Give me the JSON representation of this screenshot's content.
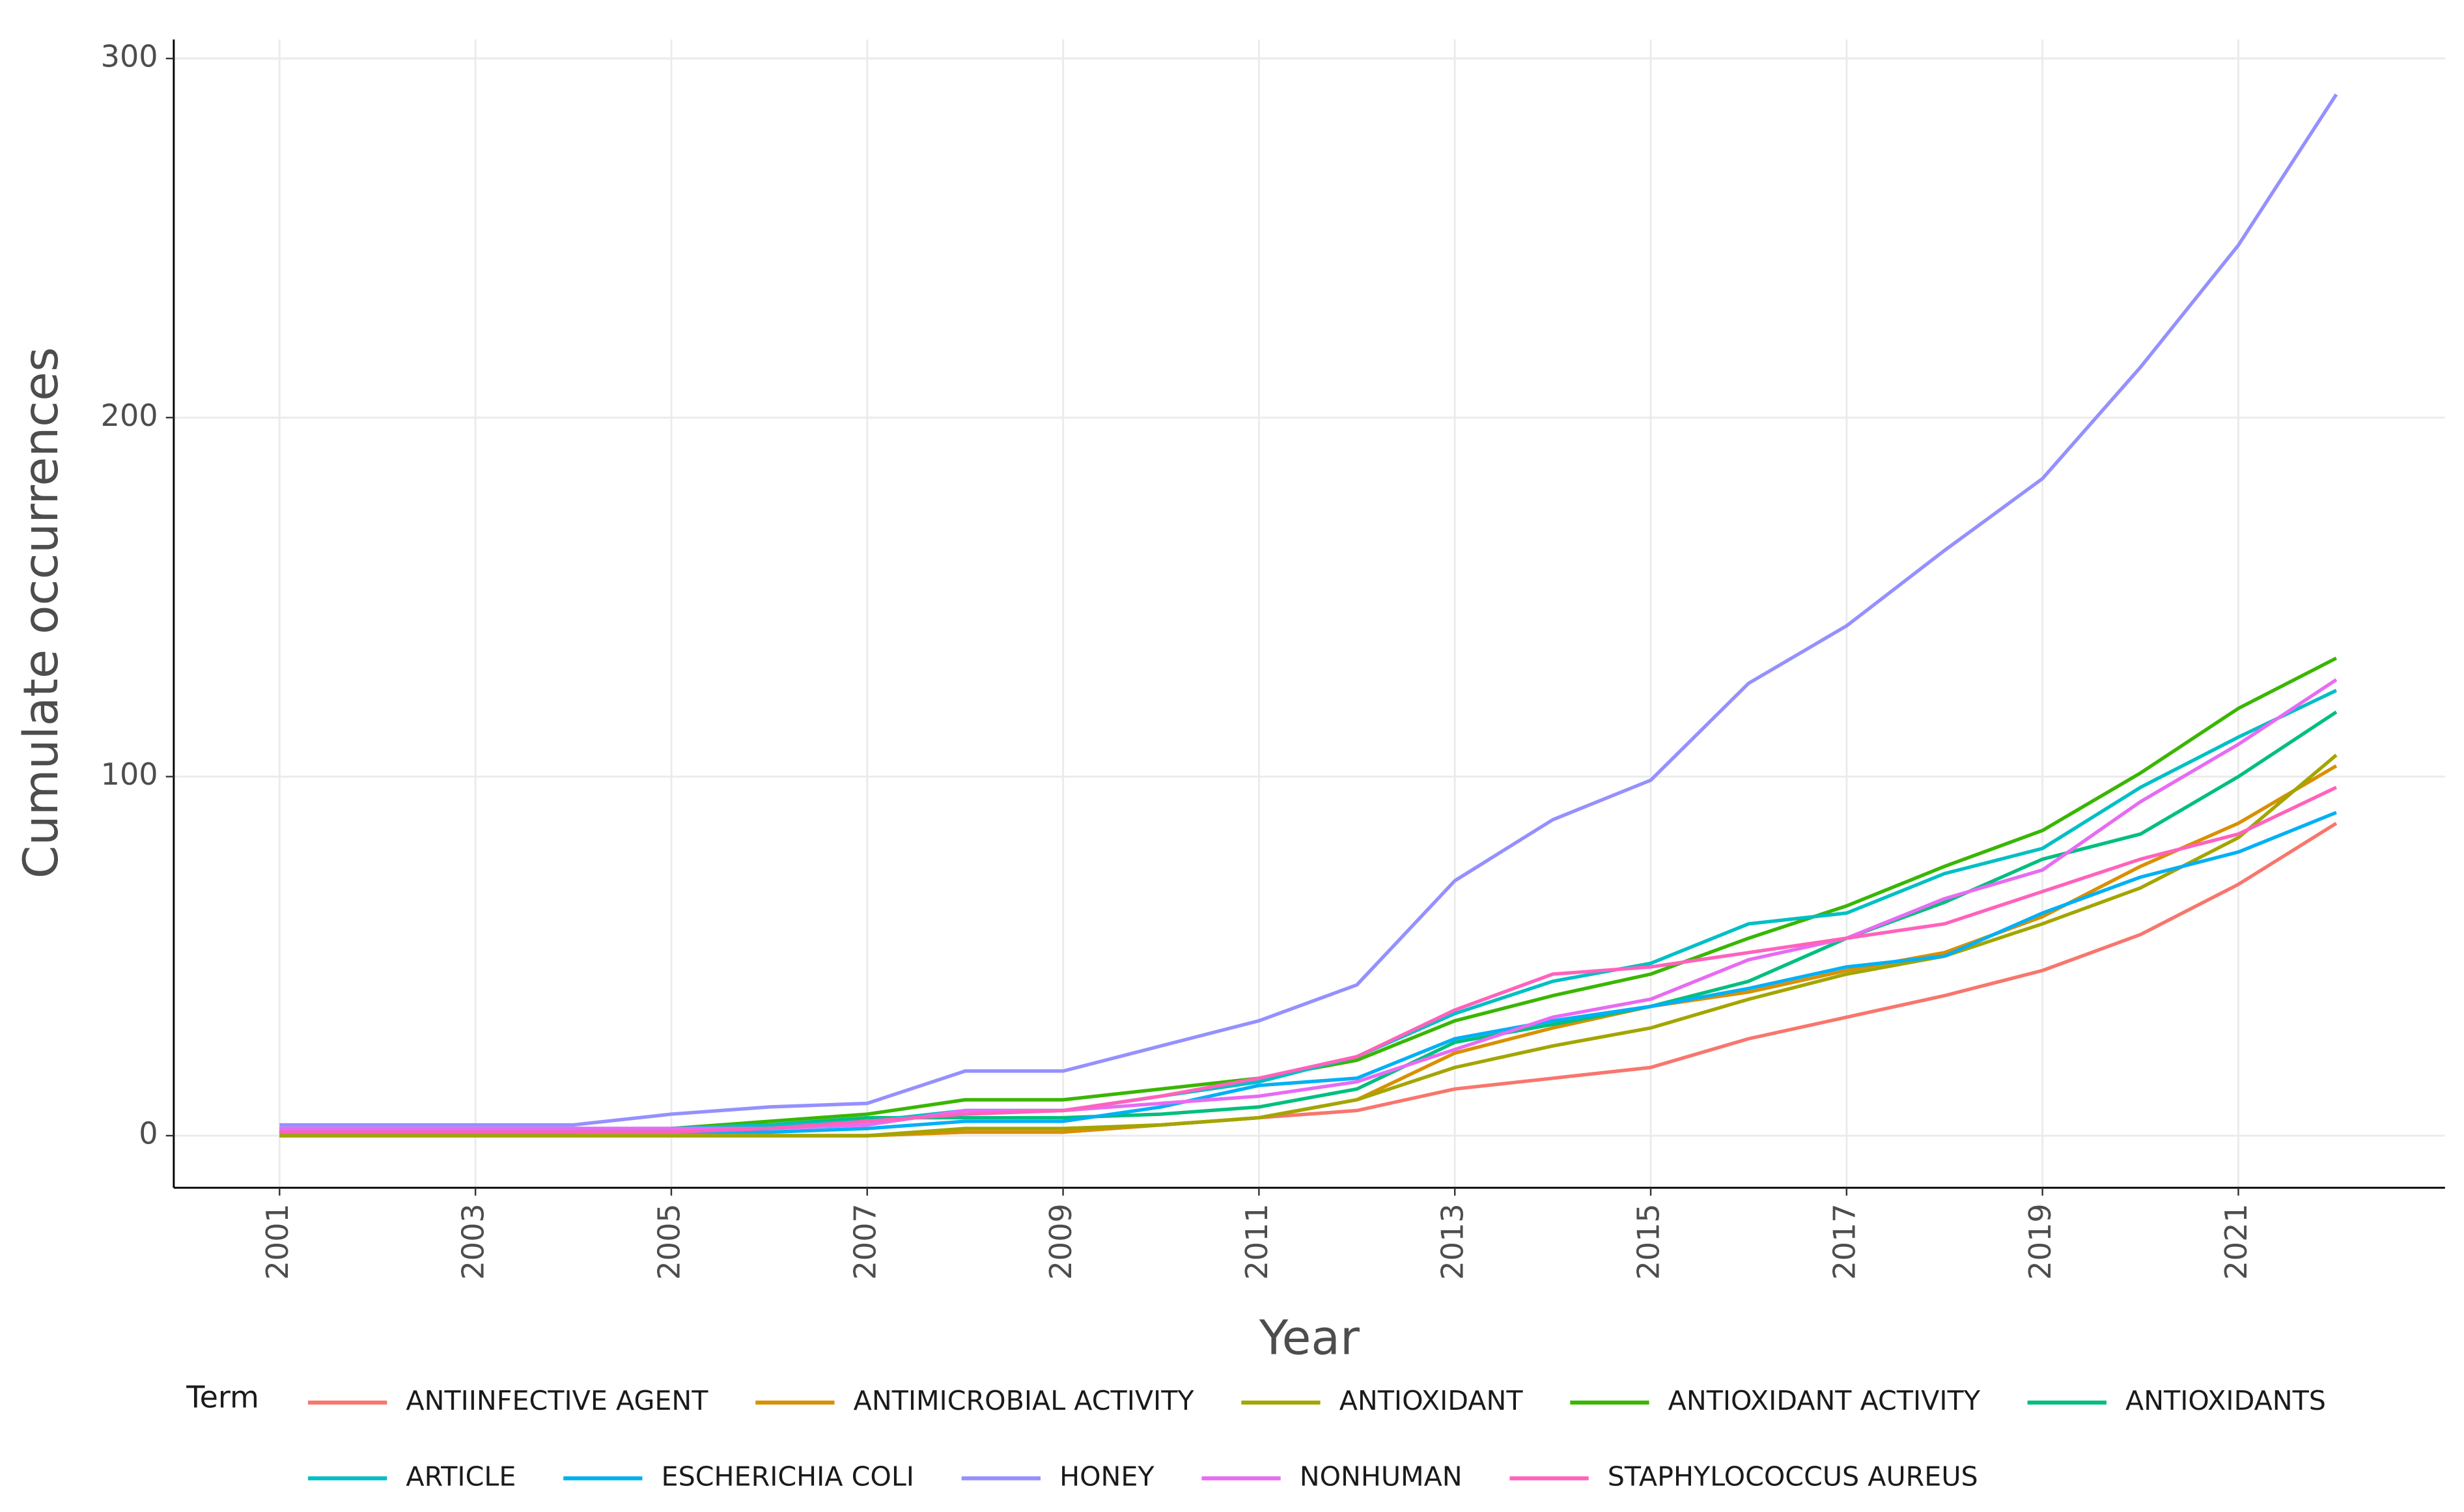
{
  "chart_data": {
    "type": "line",
    "x_label": "Year",
    "y_label": "Cumulate occurrences",
    "legend_title": "Term",
    "x": [
      2001,
      2002,
      2003,
      2004,
      2005,
      2006,
      2007,
      2008,
      2009,
      2010,
      2011,
      2012,
      2013,
      2014,
      2015,
      2016,
      2017,
      2018,
      2019,
      2020,
      2021,
      2022
    ],
    "xlim": [
      1999.92,
      2023.11
    ],
    "xticks": [
      2001,
      2003,
      2005,
      2007,
      2009,
      2011,
      2013,
      2015,
      2017,
      2019,
      2021
    ],
    "ylim": [
      -14.5,
      305.3
    ],
    "yticks": [
      0,
      100,
      200,
      300
    ],
    "grid": true,
    "legend": "bottom",
    "series": [
      {
        "name": "ANTIINFECTIVE AGENT",
        "color": "#F8766D",
        "values": [
          0,
          0,
          0,
          0,
          0,
          0,
          0,
          1,
          1,
          3,
          5,
          7,
          13,
          16,
          19,
          27,
          33,
          39,
          46,
          56,
          70,
          87
        ]
      },
      {
        "name": "ANTIMICROBIAL ACTIVITY",
        "color": "#D89000",
        "values": [
          0,
          0,
          0,
          0,
          0,
          0,
          0,
          1,
          1,
          3,
          5,
          10,
          23,
          30,
          36,
          40,
          46,
          51,
          61,
          75,
          87,
          103
        ]
      },
      {
        "name": "ANTIOXIDANT",
        "color": "#A3A500",
        "values": [
          0,
          0,
          0,
          0,
          0,
          0,
          0,
          2,
          2,
          3,
          5,
          10,
          19,
          25,
          30,
          38,
          45,
          50,
          59,
          69,
          83,
          106
        ]
      },
      {
        "name": "ANTIOXIDANT ACTIVITY",
        "color": "#39B600",
        "values": [
          1,
          1,
          1,
          1,
          2,
          4,
          6,
          10,
          10,
          13,
          16,
          21,
          32,
          39,
          45,
          55,
          64,
          75,
          85,
          101,
          119,
          133
        ]
      },
      {
        "name": "ANTIOXIDANTS",
        "color": "#00BF7D",
        "values": [
          1,
          1,
          1,
          1,
          2,
          3,
          5,
          5,
          5,
          6,
          8,
          13,
          26,
          31,
          36,
          43,
          55,
          65,
          77,
          84,
          100,
          118
        ]
      },
      {
        "name": "ARTICLE",
        "color": "#00BFC4",
        "values": [
          2,
          2,
          2,
          2,
          2,
          3,
          4,
          7,
          7,
          11,
          15,
          22,
          34,
          43,
          48,
          59,
          62,
          73,
          80,
          97,
          111,
          124
        ]
      },
      {
        "name": "ESCHERICHIA COLI",
        "color": "#00B0F6",
        "values": [
          1,
          1,
          1,
          1,
          1,
          1,
          2,
          4,
          4,
          8,
          14,
          16,
          27,
          32,
          36,
          41,
          47,
          50,
          62,
          72,
          79,
          90
        ]
      },
      {
        "name": "HONEY",
        "color": "#9590FF",
        "values": [
          3,
          3,
          3,
          3,
          6,
          8,
          9,
          18,
          18,
          25,
          32,
          42,
          71,
          88,
          99,
          126,
          142,
          163,
          183,
          214,
          248,
          290
        ]
      },
      {
        "name": "NONHUMAN",
        "color": "#E76BF3",
        "values": [
          2,
          2,
          2,
          2,
          2,
          2,
          3,
          7,
          7,
          9,
          11,
          15,
          24,
          33,
          38,
          49,
          55,
          66,
          74,
          93,
          109,
          127
        ]
      },
      {
        "name": "STAPHYLOCOCCUS AUREUS",
        "color": "#FF62BC",
        "values": [
          1,
          1,
          1,
          1,
          1,
          2,
          4,
          6,
          7,
          11,
          16,
          22,
          35,
          45,
          47,
          51,
          55,
          59,
          68,
          77,
          84,
          97
        ]
      }
    ]
  }
}
